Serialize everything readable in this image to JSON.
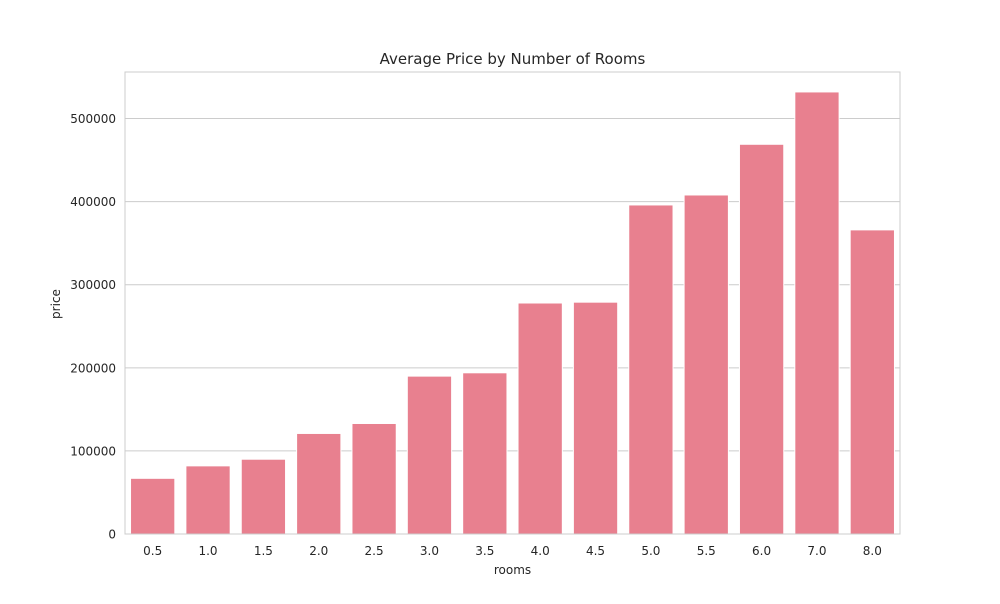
{
  "chart_data": {
    "type": "bar",
    "title": "Average Price by Number of Rooms",
    "xlabel": "rooms",
    "ylabel": "price",
    "categories": [
      "0.5",
      "1.0",
      "1.5",
      "2.0",
      "2.5",
      "3.0",
      "3.5",
      "4.0",
      "4.5",
      "5.0",
      "5.5",
      "6.0",
      "7.0",
      "8.0"
    ],
    "values": [
      67000,
      82000,
      90000,
      121000,
      133000,
      190000,
      194000,
      278000,
      279000,
      396000,
      408000,
      469000,
      532000,
      366000
    ],
    "ylim": [
      0,
      556000
    ],
    "yticks": [
      0,
      100000,
      200000,
      300000,
      400000,
      500000
    ],
    "ytick_labels": [
      "0",
      "100000",
      "200000",
      "300000",
      "400000",
      "500000"
    ],
    "grid": "y",
    "bar_color": "#e8808f",
    "grid_color": "#cccccc",
    "frame_color": "#cccccc"
  }
}
